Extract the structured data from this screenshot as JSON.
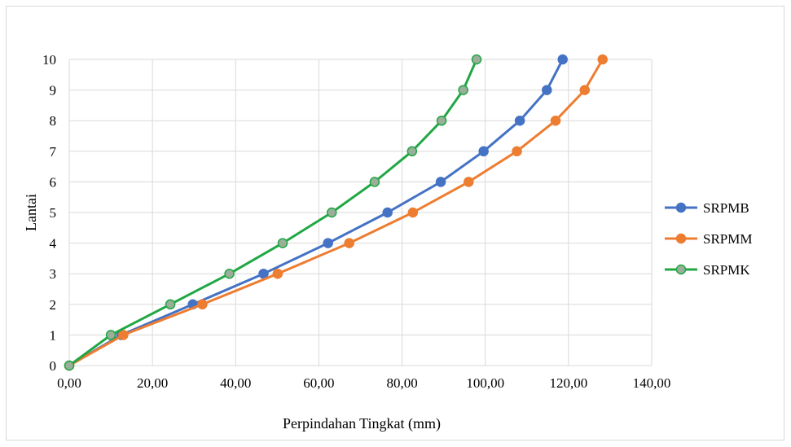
{
  "chart_data": {
    "type": "line",
    "title": "",
    "xlabel": "Perpindahan Tingkat (mm)",
    "ylabel": "Lantai",
    "xlim": [
      0,
      140
    ],
    "ylim": [
      0,
      10
    ],
    "x_ticks": [
      "0,00",
      "20,00",
      "40,00",
      "60,00",
      "80,00",
      "100,00",
      "120,00",
      "140,00"
    ],
    "y_ticks": [
      "0",
      "1",
      "2",
      "3",
      "4",
      "5",
      "6",
      "7",
      "8",
      "9",
      "10"
    ],
    "grid": true,
    "legend_position": "right",
    "series": [
      {
        "name": "SRPMB",
        "color": "#4472C4",
        "marker_fill": "#4472C4",
        "points": [
          [
            0,
            0
          ],
          [
            12.5,
            1
          ],
          [
            29.7,
            2
          ],
          [
            46.7,
            3
          ],
          [
            62.2,
            4
          ],
          [
            76.5,
            5
          ],
          [
            89.3,
            6
          ],
          [
            99.6,
            7
          ],
          [
            108.3,
            8
          ],
          [
            114.8,
            9
          ],
          [
            118.6,
            10
          ]
        ]
      },
      {
        "name": "SRPMM",
        "color": "#ED7D31",
        "marker_fill": "#ED7D31",
        "points": [
          [
            0,
            0
          ],
          [
            13.0,
            1
          ],
          [
            32.0,
            2
          ],
          [
            50.1,
            3
          ],
          [
            67.3,
            4
          ],
          [
            82.6,
            5
          ],
          [
            96.0,
            6
          ],
          [
            107.6,
            7
          ],
          [
            116.9,
            8
          ],
          [
            123.9,
            9
          ],
          [
            128.2,
            10
          ]
        ]
      },
      {
        "name": "SRPMK",
        "color": "#21A744",
        "marker_fill": "#9AAE9A",
        "points": [
          [
            0,
            0
          ],
          [
            10.0,
            1
          ],
          [
            24.3,
            2
          ],
          [
            38.5,
            3
          ],
          [
            51.3,
            4
          ],
          [
            63.1,
            5
          ],
          [
            73.4,
            6
          ],
          [
            82.4,
            7
          ],
          [
            89.5,
            8
          ],
          [
            94.7,
            9
          ],
          [
            97.9,
            10
          ]
        ]
      }
    ]
  }
}
